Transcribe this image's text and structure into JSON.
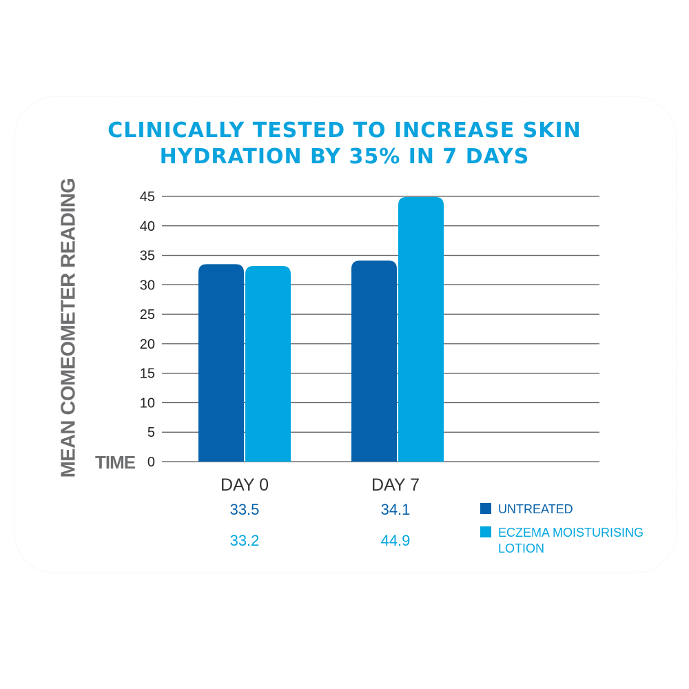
{
  "chart_data": {
    "type": "bar",
    "title": "CLINICALLY TESTED TO INCREASE SKIN HYDRATION BY 35% IN 7 DAYS",
    "title_lines": [
      "CLINICALLY TESTED TO INCREASE SKIN",
      "HYDRATION BY 35% IN 7 DAYS"
    ],
    "xlabel": "TIME",
    "ylabel": "MEAN COMEOMETER READING",
    "categories": [
      "DAY 0",
      "DAY 7"
    ],
    "ylim": [
      0,
      45
    ],
    "yticks": [
      "0",
      "5",
      "10",
      "15",
      "20",
      "25",
      "30",
      "35",
      "40",
      "45"
    ],
    "grid": true,
    "legend_position": "bottom-right",
    "series": [
      {
        "name": "UNTREATED",
        "values": [
          33.5,
          34.1
        ],
        "labels": [
          "33.5",
          "34.1"
        ],
        "color": "#0561ab"
      },
      {
        "name": "ECZEMA MOISTURISING LOTION",
        "values": [
          33.2,
          44.9
        ],
        "labels": [
          "33.2",
          "44.9"
        ],
        "color": "#00a6df"
      }
    ]
  }
}
